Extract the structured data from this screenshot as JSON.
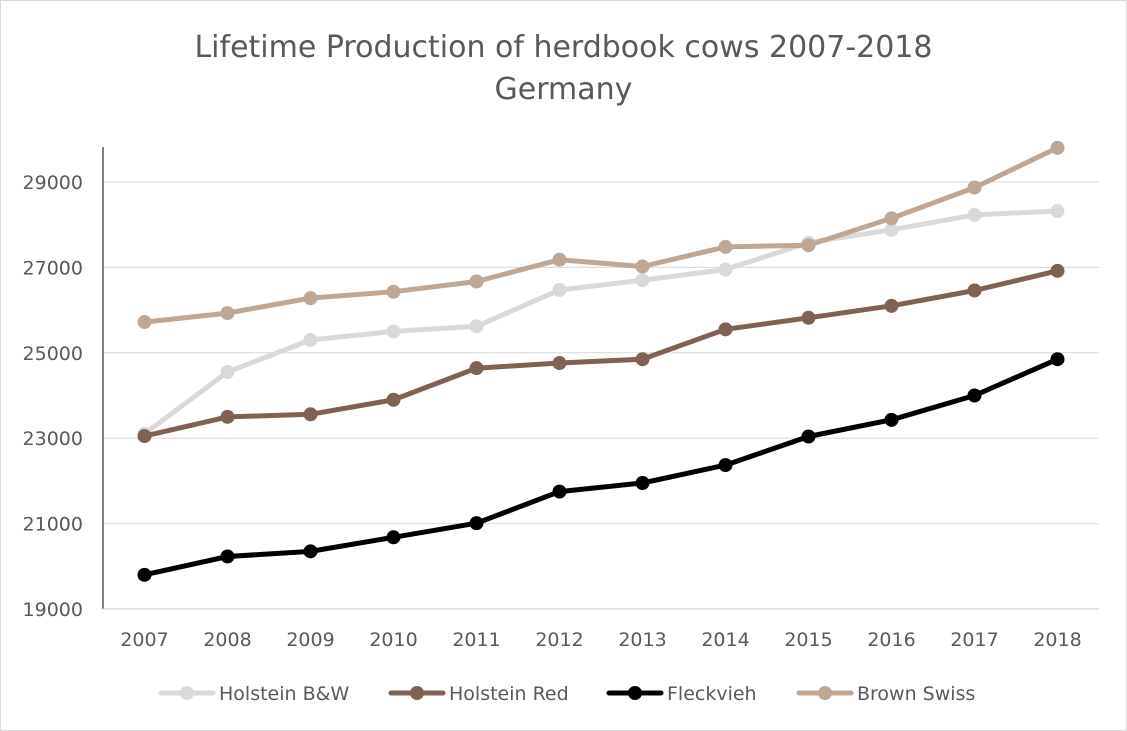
{
  "chart_data": {
    "type": "line",
    "title": "Lifetime Production of herdbook cows 2007-2018",
    "subtitle": "Germany",
    "xlabel": "",
    "ylabel": "",
    "categories": [
      "2007",
      "2008",
      "2009",
      "2010",
      "2011",
      "2012",
      "2013",
      "2014",
      "2015",
      "2016",
      "2017",
      "2018"
    ],
    "ylim": [
      19000,
      30800
    ],
    "yticks": [
      19000,
      21000,
      23000,
      25000,
      27000,
      29000
    ],
    "grid": true,
    "legend_position": "bottom",
    "series": [
      {
        "name": "Holstein B&W",
        "color": "#d9d9d9",
        "values": [
          23100,
          24550,
          25300,
          25500,
          25620,
          26470,
          26700,
          26950,
          27580,
          27880,
          28230,
          28320
        ]
      },
      {
        "name": "Holstein Red",
        "color": "#7f6252",
        "values": [
          23050,
          23500,
          23560,
          23900,
          24640,
          24760,
          24850,
          25550,
          25820,
          26100,
          26460,
          26920
        ]
      },
      {
        "name": "Fleckvieh",
        "color": "#000000",
        "values": [
          19800,
          20230,
          20350,
          20680,
          21010,
          21750,
          21950,
          22370,
          23040,
          23430,
          24000,
          24850
        ]
      },
      {
        "name": "Brown Swiss",
        "color": "#bfa796",
        "values": [
          25720,
          25930,
          26280,
          26430,
          26670,
          27180,
          27020,
          27480,
          27520,
          28150,
          28870,
          29800
        ]
      }
    ]
  }
}
